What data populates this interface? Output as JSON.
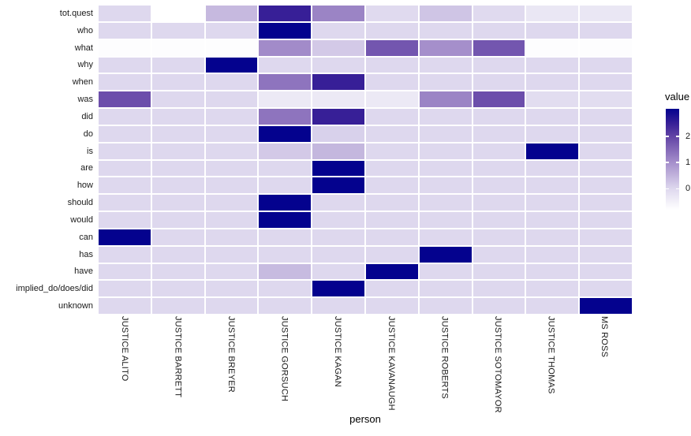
{
  "chart_data": {
    "type": "heatmap",
    "title": "",
    "xlabel": "person",
    "ylabel": "",
    "legend_title": "value",
    "legend_ticks": [
      2,
      1,
      0
    ],
    "scale_min": -0.8,
    "scale_max": 3.05,
    "grid": false,
    "legend_position": "right",
    "color_scale": [
      {
        "value": -0.8,
        "color": "#FFFFFF"
      },
      {
        "value": 0.0,
        "color": "#DED8EE"
      },
      {
        "value": 1.0,
        "color": "#A58FCB"
      },
      {
        "value": 2.0,
        "color": "#6243A5"
      },
      {
        "value": 2.5,
        "color": "#371F97"
      },
      {
        "value": 3.05,
        "color": "#04028E"
      }
    ],
    "na_color": "#FFFFFF",
    "columns": [
      "JUSTICE ALITO",
      "JUSTICE BARRETT",
      "JUSTICE BREYER",
      "JUSTICE GORSUCH",
      "JUSTICE KAGAN",
      "JUSTICE KAVANAUGH",
      "JUSTICE ROBERTS",
      "JUSTICE SOTOMAYOR",
      "JUSTICE THOMAS",
      "MS ROSS"
    ],
    "rows": [
      "tot.quest",
      "who",
      "what",
      "why",
      "when",
      "was",
      "did",
      "do",
      "is",
      "are",
      "how",
      "should",
      "would",
      "can",
      "has",
      "have",
      "implied_do/does/did",
      "unknown"
    ],
    "values": [
      [
        0,
        null,
        0.42,
        2.5,
        1.15,
        -0.05,
        0.26,
        -0.05,
        -0.3,
        -0.3
      ],
      [
        0,
        0,
        0,
        3.05,
        0,
        0,
        0,
        0,
        0,
        0
      ],
      [
        -0.75,
        -0.75,
        -0.75,
        1.05,
        0.2,
        1.75,
        1.0,
        1.75,
        -0.75,
        -0.75
      ],
      [
        0,
        0,
        3.05,
        0,
        0,
        0,
        0,
        0,
        0,
        0
      ],
      [
        0,
        0,
        0,
        1.35,
        2.5,
        0,
        0,
        0,
        0,
        0
      ],
      [
        1.85,
        0,
        0,
        -0.35,
        -0.35,
        -0.35,
        1.15,
        1.85,
        -0.1,
        -0.1
      ],
      [
        0,
        0,
        0,
        1.35,
        2.5,
        0,
        0,
        0,
        0,
        0
      ],
      [
        0,
        0,
        0,
        3.05,
        0.1,
        0,
        0,
        0,
        0,
        0
      ],
      [
        0,
        0,
        0,
        0.2,
        0.45,
        0,
        0,
        0,
        3.05,
        0
      ],
      [
        0,
        0,
        0,
        0,
        3.05,
        0,
        0,
        0,
        0,
        0
      ],
      [
        0,
        0,
        0,
        0,
        3.05,
        0,
        0,
        0,
        0,
        0
      ],
      [
        0,
        0,
        0,
        3.05,
        0,
        0,
        0,
        0,
        0,
        0
      ],
      [
        0,
        0,
        0,
        3.05,
        0,
        0,
        0,
        0,
        0,
        0
      ],
      [
        3.05,
        0,
        0,
        0,
        0,
        0,
        0,
        0,
        0,
        0
      ],
      [
        0,
        0,
        0,
        0,
        0,
        0,
        3.05,
        0,
        0,
        0
      ],
      [
        0,
        0,
        0,
        0.4,
        0,
        3.05,
        0,
        0,
        0,
        0
      ],
      [
        0,
        0,
        0,
        0,
        3.05,
        0,
        0,
        0,
        0,
        0
      ],
      [
        0,
        0,
        0,
        0,
        0,
        0,
        0,
        0,
        0,
        3.05
      ]
    ]
  }
}
